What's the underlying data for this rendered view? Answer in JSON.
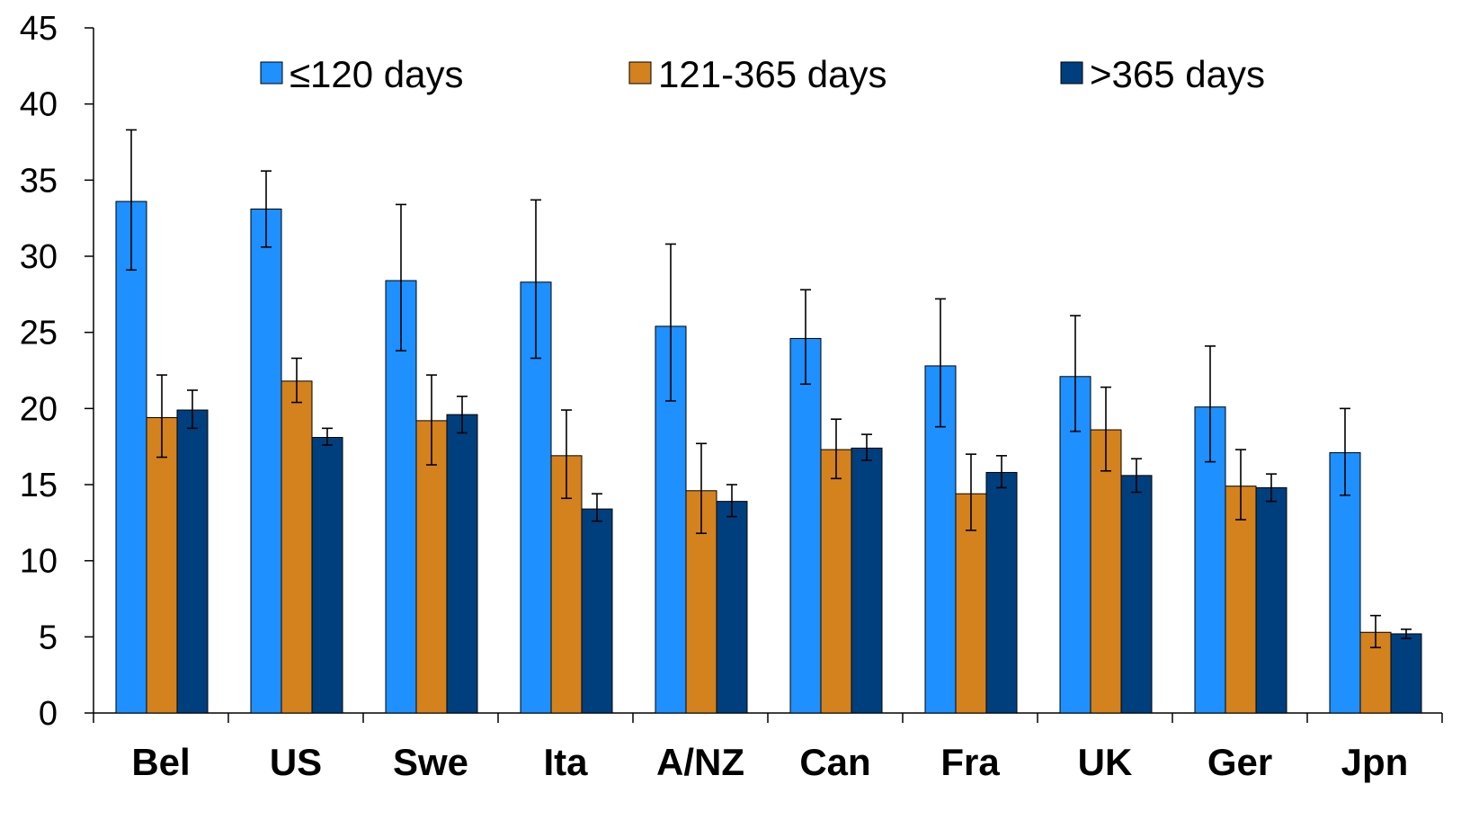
{
  "chart_data": {
    "type": "bar",
    "categories": [
      "Bel",
      "US",
      "Swe",
      "Ita",
      "A/NZ",
      "Can",
      "Fra",
      "UK",
      "Ger",
      "Jpn"
    ],
    "ylim": [
      0,
      45
    ],
    "yticks": [
      0,
      5,
      10,
      15,
      20,
      25,
      30,
      35,
      40,
      45
    ],
    "grid": false,
    "legend_position": "top",
    "series": [
      {
        "name": "≤120 days",
        "color": "#1E90FF",
        "values": [
          33.6,
          33.1,
          28.4,
          28.3,
          25.4,
          24.6,
          22.8,
          22.1,
          20.1,
          17.1
        ],
        "err_low": [
          29.1,
          30.6,
          23.8,
          23.3,
          20.5,
          21.6,
          18.8,
          18.5,
          16.5,
          14.3
        ],
        "err_high": [
          38.3,
          35.6,
          33.4,
          33.7,
          30.8,
          27.8,
          27.2,
          26.1,
          24.1,
          20.0
        ]
      },
      {
        "name": "121-365 days",
        "color": "#D4821E",
        "values": [
          19.4,
          21.8,
          19.2,
          16.9,
          14.6,
          17.3,
          14.4,
          18.6,
          14.9,
          5.3
        ],
        "err_low": [
          16.8,
          20.4,
          16.3,
          14.1,
          11.8,
          15.4,
          12.0,
          15.9,
          12.7,
          4.3
        ],
        "err_high": [
          22.2,
          23.3,
          22.2,
          19.9,
          17.7,
          19.3,
          17.0,
          21.4,
          17.3,
          6.4
        ]
      },
      {
        "name": ">365 days",
        "color": "#003F7D",
        "values": [
          19.9,
          18.1,
          19.6,
          13.4,
          13.9,
          17.4,
          15.8,
          15.6,
          14.8,
          5.2
        ],
        "err_low": [
          18.7,
          17.6,
          18.4,
          12.6,
          12.9,
          16.6,
          14.8,
          14.5,
          13.9,
          4.9
        ],
        "err_high": [
          21.2,
          18.7,
          20.8,
          14.4,
          15.0,
          18.3,
          16.9,
          16.7,
          15.7,
          5.5
        ]
      }
    ]
  }
}
